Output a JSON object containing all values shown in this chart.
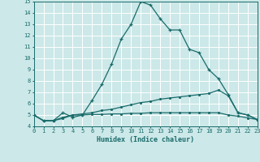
{
  "xlabel": "Humidex (Indice chaleur)",
  "background_color": "#cce8e8",
  "grid_color": "#ffffff",
  "line_color": "#1a6b6b",
  "xlim": [
    0,
    23
  ],
  "ylim": [
    4,
    15
  ],
  "xticks": [
    0,
    1,
    2,
    3,
    4,
    5,
    6,
    7,
    8,
    9,
    10,
    11,
    12,
    13,
    14,
    15,
    16,
    17,
    18,
    19,
    20,
    21,
    22,
    23
  ],
  "yticks": [
    4,
    5,
    6,
    7,
    8,
    9,
    10,
    11,
    12,
    13,
    14,
    15
  ],
  "curve1_x": [
    0,
    1,
    2,
    3,
    4,
    5,
    6,
    7,
    8,
    9,
    10,
    11,
    12,
    13,
    14,
    15,
    16,
    17,
    18,
    19,
    20,
    21,
    22,
    23
  ],
  "curve1_y": [
    5.0,
    4.5,
    4.5,
    5.2,
    4.8,
    5.0,
    6.3,
    7.7,
    9.5,
    11.7,
    13.0,
    15.0,
    14.7,
    13.5,
    12.5,
    12.5,
    10.8,
    10.5,
    9.0,
    8.2,
    6.8,
    5.2,
    5.0,
    4.6
  ],
  "curve2_x": [
    0,
    1,
    2,
    3,
    4,
    5,
    6,
    7,
    8,
    9,
    10,
    11,
    12,
    13,
    14,
    15,
    16,
    17,
    18,
    19,
    20,
    21,
    22,
    23
  ],
  "curve2_y": [
    5.0,
    4.5,
    4.5,
    4.8,
    5.0,
    5.1,
    5.2,
    5.4,
    5.5,
    5.7,
    5.9,
    6.1,
    6.2,
    6.4,
    6.5,
    6.6,
    6.7,
    6.8,
    6.9,
    7.2,
    6.7,
    5.2,
    5.0,
    4.6
  ],
  "curve3_x": [
    0,
    1,
    2,
    3,
    4,
    5,
    6,
    7,
    8,
    9,
    10,
    11,
    12,
    13,
    14,
    15,
    16,
    17,
    18,
    19,
    20,
    21,
    22,
    23
  ],
  "curve3_y": [
    5.0,
    4.5,
    4.5,
    4.7,
    5.0,
    5.0,
    5.05,
    5.05,
    5.1,
    5.1,
    5.15,
    5.15,
    5.2,
    5.2,
    5.2,
    5.2,
    5.2,
    5.2,
    5.2,
    5.2,
    5.0,
    4.9,
    4.75,
    4.6
  ]
}
